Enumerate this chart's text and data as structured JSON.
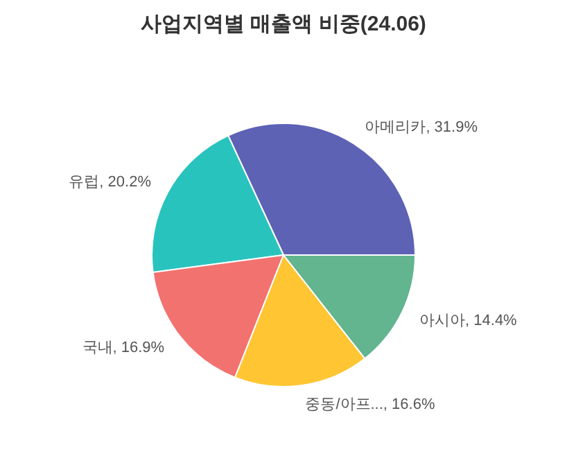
{
  "chart_data": {
    "type": "pie",
    "title": "사업지역별 매출액 비중(24.06)",
    "categories": [
      "아메리카",
      "유럽",
      "국내",
      "중동/아프...",
      "아시아"
    ],
    "values": [
      31.9,
      20.2,
      16.9,
      16.6,
      14.4
    ],
    "value_labels": [
      "31.9%",
      "20.2%",
      "16.9%",
      "16.6%",
      "14.4%"
    ],
    "colors": [
      "#5d62b5",
      "#29c3be",
      "#f2726f",
      "#ffc533",
      "#62b58f"
    ],
    "legend": false
  }
}
